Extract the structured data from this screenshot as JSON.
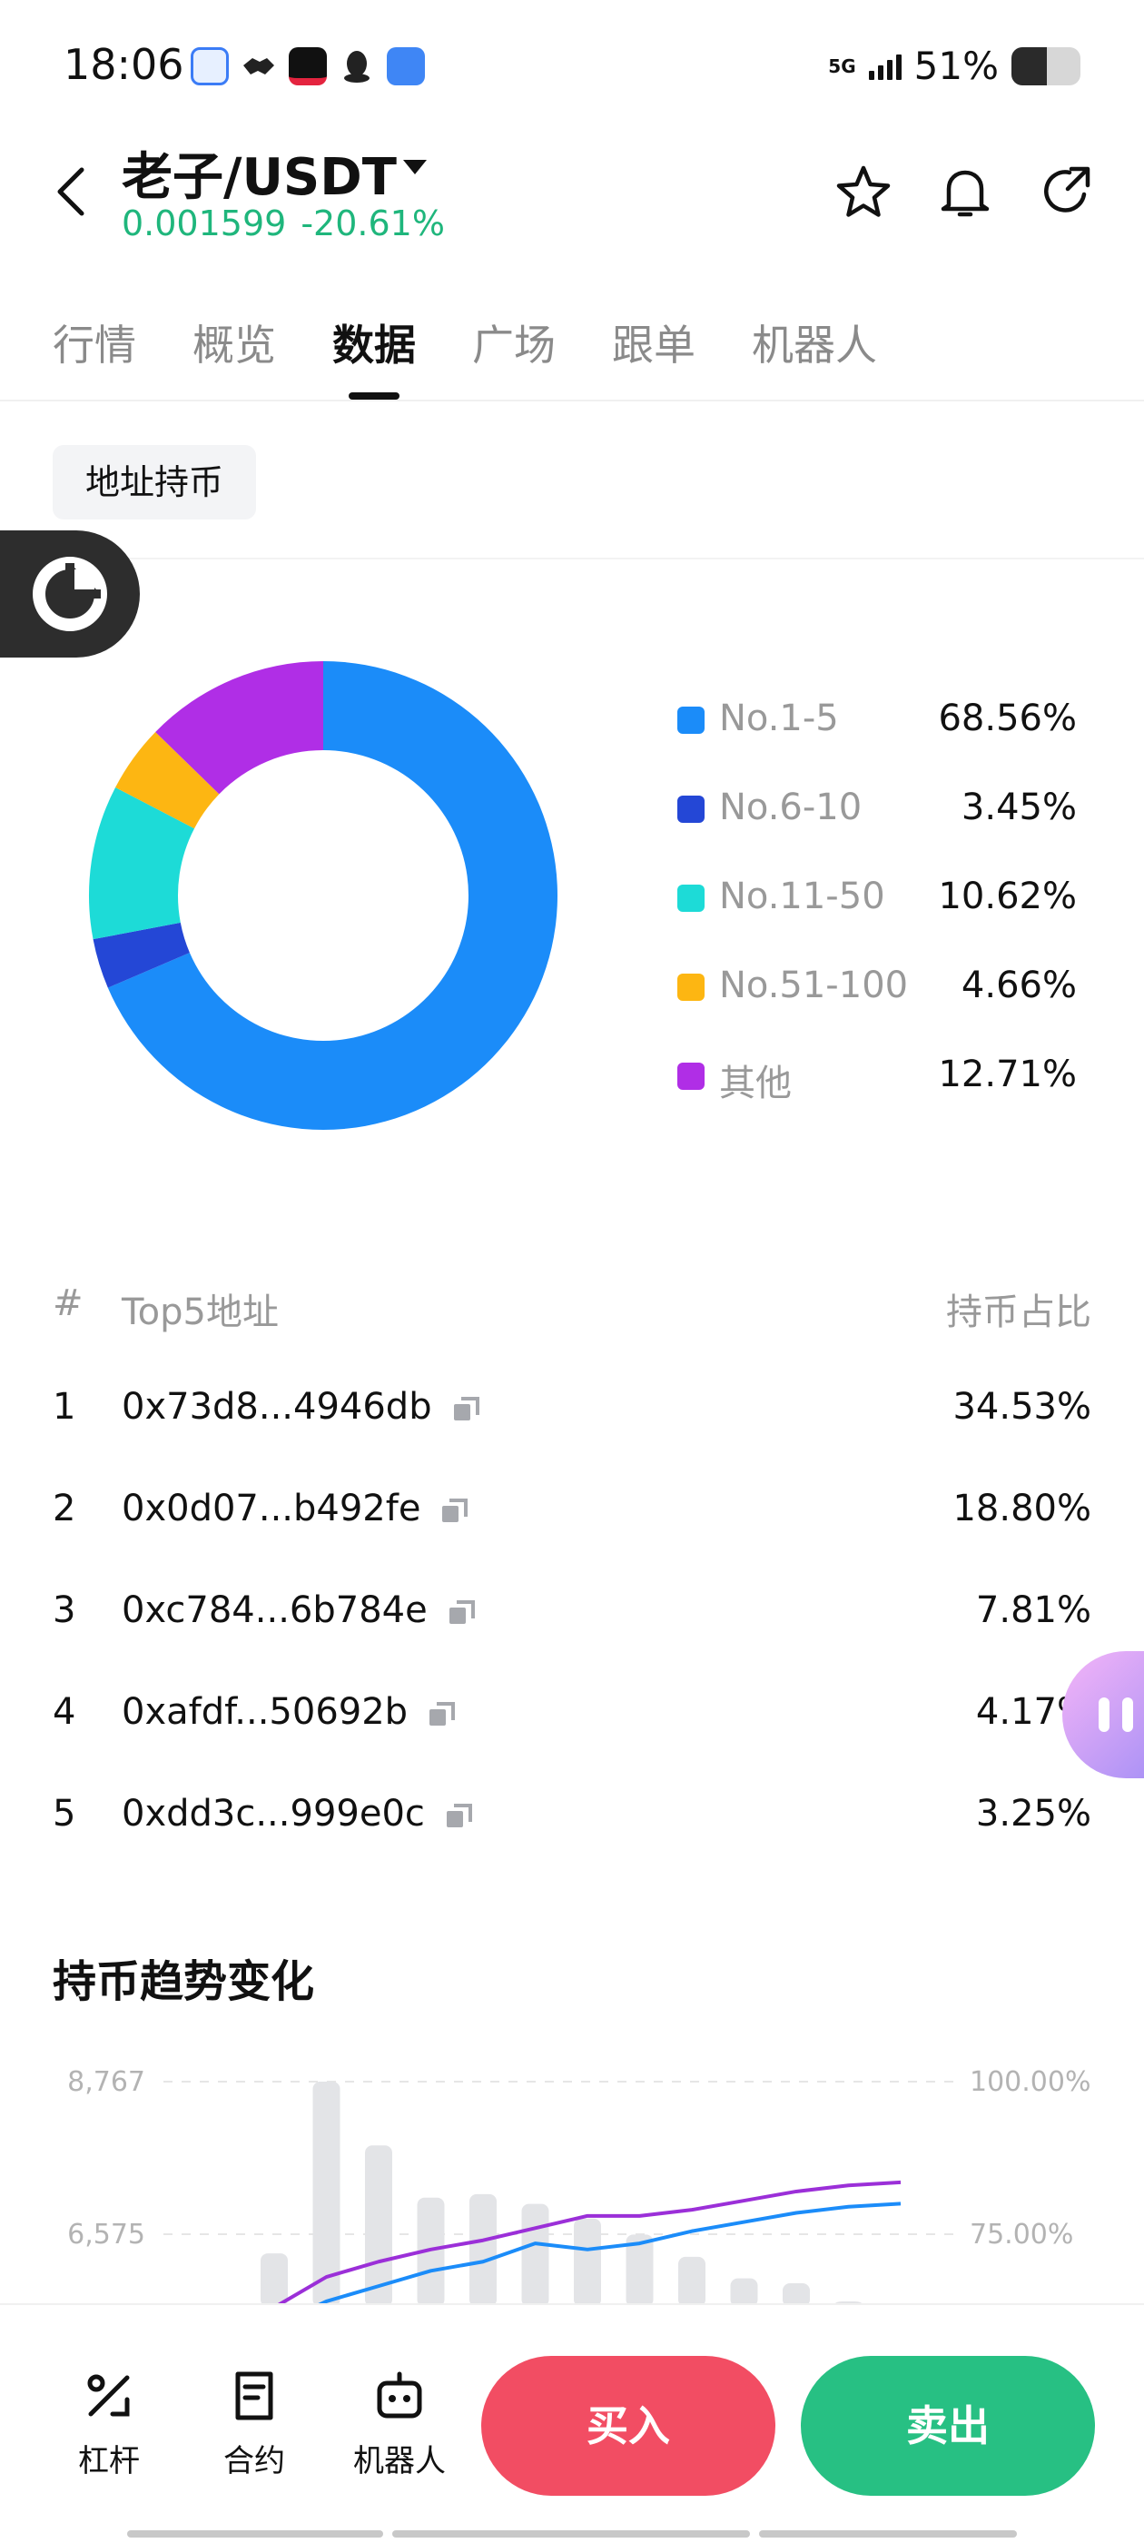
{
  "status_bar": {
    "time": "18:06",
    "network": "5G",
    "battery_percent": "51%",
    "battery_level": 0.51,
    "app_icons": [
      "browser-app-icon",
      "handshake-app-icon",
      "tiktok-app-icon",
      "qq-app-icon",
      "notes-app-icon"
    ]
  },
  "header": {
    "pair": "老子/USDT",
    "price": "0.001599",
    "change": "-20.61%",
    "price_color": "#1fb67c"
  },
  "tabs": [
    {
      "label": "行情",
      "active": false
    },
    {
      "label": "概览",
      "active": false
    },
    {
      "label": "数据",
      "active": true
    },
    {
      "label": "广场",
      "active": false
    },
    {
      "label": "跟单",
      "active": false
    },
    {
      "label": "机器人",
      "active": false
    }
  ],
  "section_chip": "地址持币",
  "distribution": {
    "items": [
      {
        "label": "No.1-5",
        "value": "68.56%",
        "share": 68.56,
        "color": "#1b8cf9"
      },
      {
        "label": "No.6-10",
        "value": "3.45%",
        "share": 3.45,
        "color": "#2447d6"
      },
      {
        "label": "No.11-50",
        "value": "10.62%",
        "share": 10.62,
        "color": "#1ddbd7"
      },
      {
        "label": "No.51-100",
        "value": "4.66%",
        "share": 4.66,
        "color": "#fdb612"
      },
      {
        "label": "其他",
        "value": "12.71%",
        "share": 12.71,
        "color": "#b02ee6"
      }
    ]
  },
  "top5": {
    "header_idx": "#",
    "header_addr": "Top5地址",
    "header_pct": "持币占比",
    "rows": [
      {
        "idx": "1",
        "addr": "0x73d8...4946db",
        "pct": "34.53%"
      },
      {
        "idx": "2",
        "addr": "0x0d07...b492fe",
        "pct": "18.80%"
      },
      {
        "idx": "3",
        "addr": "0xc784...6b784e",
        "pct": "7.81%"
      },
      {
        "idx": "4",
        "addr": "0xafdf...50692b",
        "pct": "4.17%"
      },
      {
        "idx": "5",
        "addr": "0xdd3c...999e0c",
        "pct": "3.25%"
      }
    ]
  },
  "trend": {
    "title": "持币趋势变化",
    "left_ticks": [
      "8,767",
      "6,575"
    ],
    "right_ticks": [
      "100.00%",
      "75.00%"
    ]
  },
  "chart_data": {
    "type": "bar",
    "title": "持币趋势变化",
    "yticks_left": [
      "8,767",
      "6,575"
    ],
    "yticks_right": [
      "100.00%",
      "75.00%"
    ],
    "bar_values": [
      6300,
      8767,
      7850,
      7100,
      7150,
      7010,
      6800,
      6570,
      6250,
      5940,
      5870,
      5610,
      5490
    ],
    "series": [
      {
        "color": "#9b2fd8",
        "values": [
          0.63,
          0.68,
          0.705,
          0.725,
          0.74,
          0.76,
          0.78,
          0.78,
          0.79,
          0.805,
          0.82,
          0.83,
          0.835
        ]
      },
      {
        "color": "#1b8cf9",
        "values": [
          0.6,
          0.64,
          0.665,
          0.69,
          0.705,
          0.735,
          0.725,
          0.735,
          0.755,
          0.77,
          0.785,
          0.795,
          0.8
        ]
      }
    ]
  },
  "bottom_bar": {
    "leverage": "杠杆",
    "contract": "合约",
    "robot": "机器人",
    "buy": "买入",
    "sell": "卖出"
  }
}
